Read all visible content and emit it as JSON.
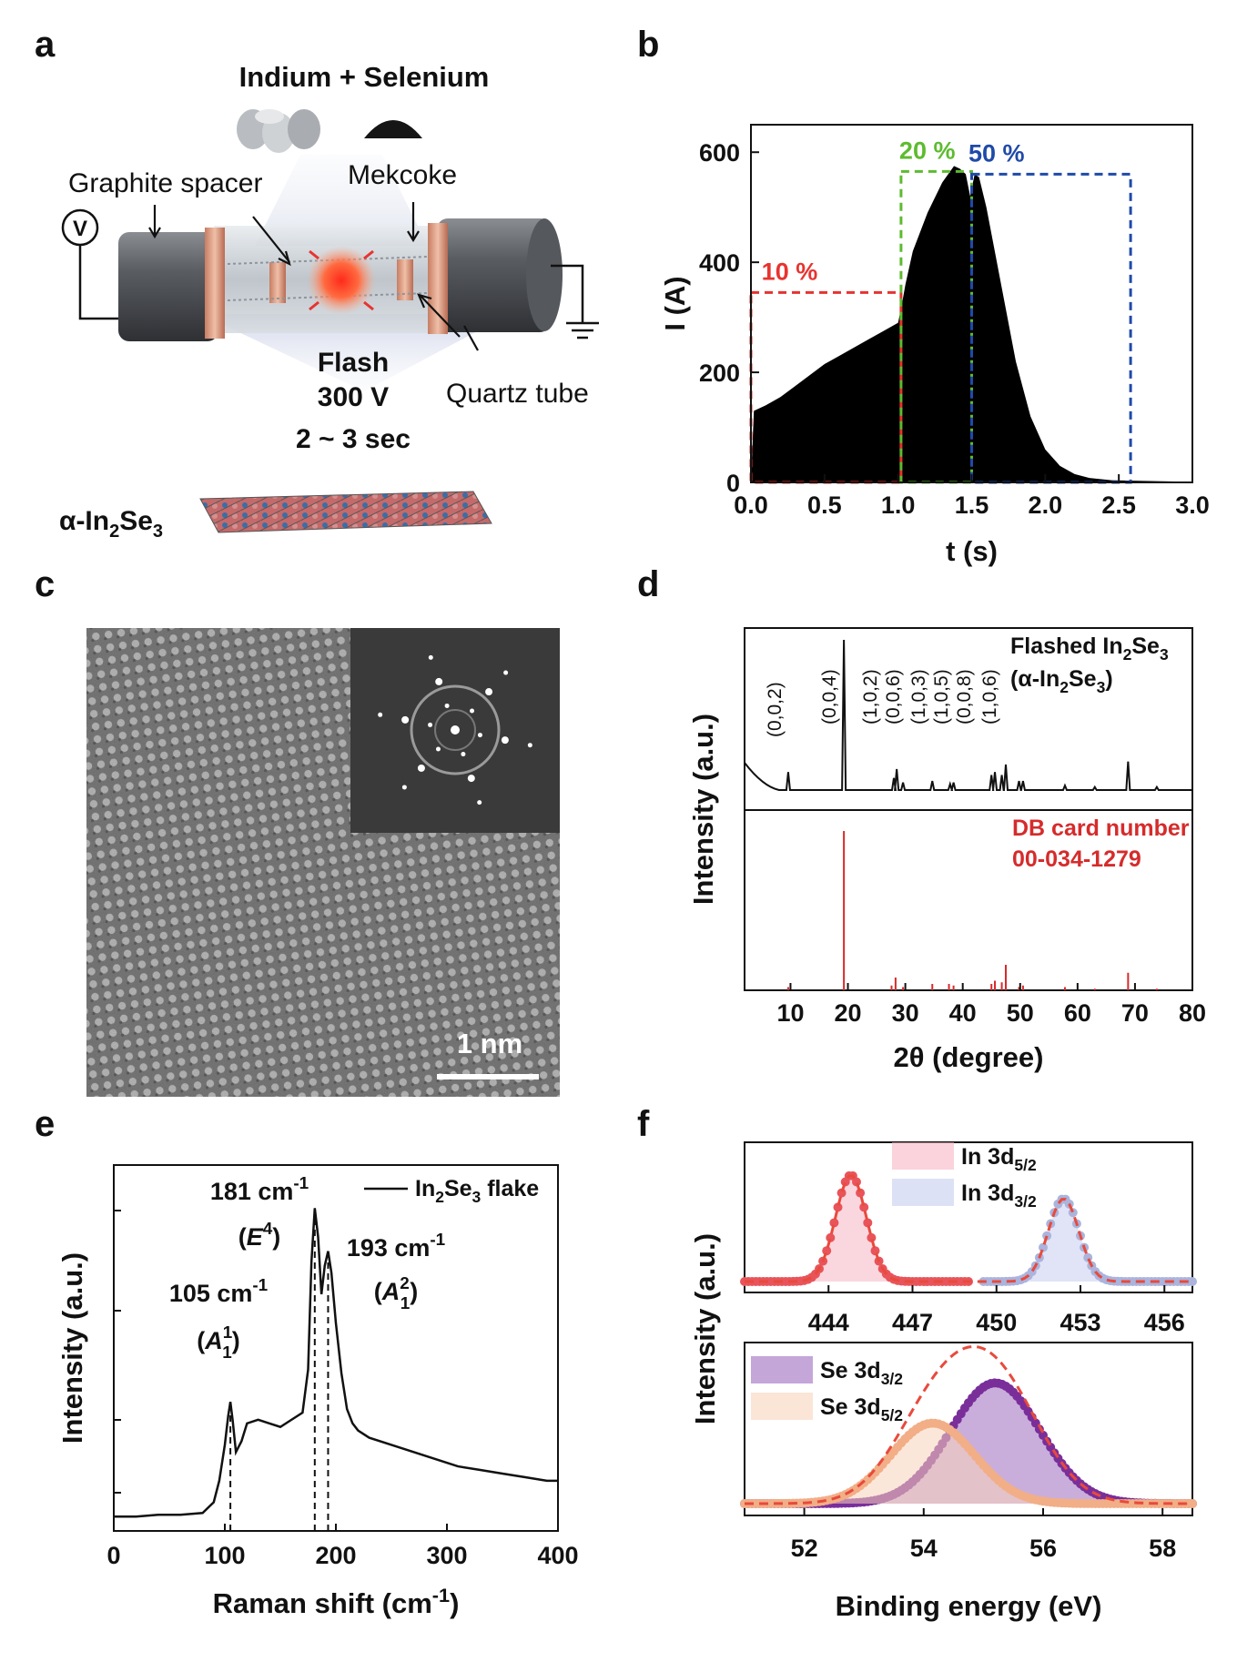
{
  "panels": {
    "a": {
      "label": "a",
      "title": "Indium + Selenium",
      "graphite_spacer": "Graphite spacer",
      "mekcoke": "Mekcoke",
      "quartz_tube": "Quartz tube",
      "voltmeter": "V",
      "flash": "Flash",
      "voltage": "300 V",
      "duration": "2 ~ 3 sec",
      "product_prefix": "α-In",
      "product_sub1": "2",
      "product_mid": "Se",
      "product_sub2": "3"
    },
    "b": {
      "label": "b"
    },
    "c": {
      "label": "c",
      "scale_bar": "1 nm"
    },
    "d": {
      "label": "d"
    },
    "e": {
      "label": "e"
    },
    "f": {
      "label": "f"
    }
  },
  "chart_data": [
    {
      "id": "b",
      "type": "area",
      "xlabel": "t (s)",
      "ylabel": "I (A)",
      "xlim": [
        0,
        3.0
      ],
      "ylim": [
        0,
        650
      ],
      "xticks": [
        "0.0",
        "0.5",
        "1.0",
        "1.5",
        "2.0",
        "2.5",
        "3.0"
      ],
      "yticks": [
        "0",
        "200",
        "400",
        "600"
      ],
      "x": [
        0.0,
        0.02,
        0.1,
        0.2,
        0.3,
        0.4,
        0.5,
        0.6,
        0.7,
        0.8,
        0.9,
        1.0,
        1.03,
        1.05,
        1.1,
        1.2,
        1.3,
        1.38,
        1.42,
        1.46,
        1.49,
        1.52,
        1.55,
        1.6,
        1.7,
        1.8,
        1.9,
        2.0,
        2.1,
        2.2,
        2.3,
        2.45,
        2.6,
        2.8,
        3.0
      ],
      "y": [
        0,
        130,
        140,
        155,
        175,
        195,
        215,
        230,
        245,
        260,
        275,
        290,
        330,
        360,
        420,
        490,
        545,
        575,
        570,
        560,
        520,
        560,
        555,
        500,
        360,
        220,
        120,
        60,
        30,
        15,
        8,
        4,
        3,
        2,
        1
      ],
      "annotations": [
        {
          "text": "10 %",
          "x0": 0.0,
          "x1": 1.02,
          "y1": 345,
          "color": "#e8332f"
        },
        {
          "text": "20 %",
          "x0": 1.02,
          "x1": 1.5,
          "y1": 565,
          "color": "#5dbb2f"
        },
        {
          "text": "50 %",
          "x0": 1.5,
          "x1": 2.58,
          "y1": 560,
          "color": "#1f4aa8"
        }
      ],
      "grid": false
    },
    {
      "id": "d",
      "type": "line",
      "xlabel": "2θ (degree)",
      "ylabel": "Intensity (a.u.)",
      "xlim": [
        2,
        80
      ],
      "xticks": [
        "10",
        "20",
        "30",
        "40",
        "50",
        "60",
        "70",
        "80"
      ],
      "series": [
        {
          "name": "Flashed In2Se3 (α-In2Se3)",
          "legend_main": "Flashed In",
          "legend_sub1": "2",
          "legend_mid": "Se",
          "legend_sub2": "3",
          "legend_line2_pre": "(α-In",
          "legend_line2_sub1": "2",
          "legend_line2_mid": "Se",
          "legend_line2_sub2": "3",
          "legend_line2_post": ")",
          "peaks_x": [
            9.6,
            19.3,
            28.0,
            28.5,
            29.6,
            34.7,
            37.8,
            38.4,
            45.0,
            45.6,
            46.8,
            47.5,
            49.8,
            50.5,
            57.8,
            63.0,
            68.8,
            73.8
          ],
          "peaks_y": [
            0.12,
            1.0,
            0.08,
            0.14,
            0.05,
            0.06,
            0.04,
            0.05,
            0.1,
            0.12,
            0.1,
            0.17,
            0.06,
            0.06,
            0.03,
            0.02,
            0.19,
            0.02
          ],
          "color": "#111111"
        },
        {
          "name": "DB card number 00-034-1279",
          "legend_line1": "DB card number",
          "legend_line2": "00-034-1279",
          "peaks_x": [
            9.6,
            19.3,
            27.6,
            28.3,
            29.6,
            34.7,
            37.6,
            38.4,
            45.0,
            45.6,
            46.8,
            47.5,
            49.8,
            50.5,
            57.8,
            63.0,
            68.8,
            73.8
          ],
          "peaks_y": [
            0.02,
            1.0,
            0.03,
            0.08,
            0.02,
            0.04,
            0.04,
            0.03,
            0.04,
            0.06,
            0.05,
            0.16,
            0.02,
            0.03,
            0.02,
            0.01,
            0.11,
            0.01
          ],
          "color": "#d62b2b"
        }
      ],
      "miller_labels": [
        {
          "x": 9.6,
          "text": "(0,0,2)"
        },
        {
          "x": 19.3,
          "text": "(0,0,4)"
        },
        {
          "x": 28.0,
          "text": "(1,0,2)"
        },
        {
          "x": 28.5,
          "text": "(0,0,6)"
        },
        {
          "x": 34.7,
          "text": "(1,0,3)"
        },
        {
          "x": 37.8,
          "text": "(1,0,5)"
        },
        {
          "x": 38.4,
          "text": "(0,0,8)"
        },
        {
          "x": 38.9,
          "text": "(1,0,6)"
        }
      ]
    },
    {
      "id": "e",
      "type": "line",
      "xlabel": "Raman shift (cm",
      "xlabel_sup": "-1",
      "xlabel_end": ")",
      "ylabel": "Intensity (a.u.)",
      "xlim": [
        0,
        400
      ],
      "xticks": [
        "0",
        "100",
        "200",
        "300",
        "400"
      ],
      "series": [
        {
          "name": "In2Se3 flake",
          "legend_pre": "In",
          "legend_sub1": "2",
          "legend_mid": "Se",
          "legend_sub2": "3",
          "legend_post": " flake",
          "x": [
            0,
            20,
            40,
            60,
            80,
            90,
            95,
            100,
            103,
            105,
            107,
            110,
            115,
            120,
            130,
            140,
            150,
            160,
            170,
            175,
            178,
            181,
            184,
            187,
            190,
            193,
            196,
            200,
            205,
            210,
            215,
            220,
            230,
            250,
            270,
            290,
            310,
            330,
            350,
            370,
            390,
            400
          ],
          "y": [
            0.04,
            0.04,
            0.045,
            0.045,
            0.05,
            0.08,
            0.14,
            0.24,
            0.32,
            0.36,
            0.31,
            0.22,
            0.25,
            0.3,
            0.31,
            0.3,
            0.29,
            0.31,
            0.33,
            0.45,
            0.75,
            0.9,
            0.82,
            0.66,
            0.74,
            0.78,
            0.72,
            0.58,
            0.44,
            0.34,
            0.3,
            0.28,
            0.26,
            0.24,
            0.22,
            0.2,
            0.18,
            0.17,
            0.16,
            0.15,
            0.14,
            0.14
          ],
          "color": "#111111"
        }
      ],
      "peaks": [
        {
          "x": 105,
          "label": "105 cm",
          "sup": "-1",
          "mode_letter": "A",
          "mode_sup": "1",
          "mode_sub": "1"
        },
        {
          "x": 181,
          "label": "181 cm",
          "sup": "-1",
          "mode_letter": "E",
          "mode_sup": "4",
          "mode_sub": ""
        },
        {
          "x": 193,
          "label": "193 cm",
          "sup": "-1",
          "mode_letter": "A",
          "mode_sup": "2",
          "mode_sub": "1"
        }
      ]
    },
    {
      "id": "f_top",
      "type": "line",
      "xlim": [
        441,
        457
      ],
      "xticks": [
        "444",
        "447",
        "450",
        "453",
        "456"
      ],
      "series": [
        {
          "name": "In 3d5/2",
          "legend_pre": "In 3d",
          "legend_sub": "5/2",
          "center": 444.8,
          "height": 0.9,
          "sigma": 0.55,
          "color": "#e8545a",
          "fill": "#f6b6c4"
        },
        {
          "name": "In 3d3/2",
          "legend_pre": "In 3d",
          "legend_sub": "3/2",
          "center": 452.4,
          "height": 0.7,
          "sigma": 0.55,
          "color": "#aab4dd",
          "fill": "#c6cdee"
        }
      ]
    },
    {
      "id": "f_bottom",
      "type": "line",
      "xlabel": "Binding energy (eV)",
      "ylabel": "Intensity (a.u.)",
      "xlim": [
        51,
        58.5
      ],
      "xticks": [
        "52",
        "54",
        "56",
        "58"
      ],
      "series": [
        {
          "name": "Se 3d3/2",
          "legend_pre": "Se 3d",
          "legend_sub": "3/2",
          "center": 55.2,
          "height": 0.78,
          "sigma": 0.75,
          "color": "#7a2e9a",
          "fill": "#9d6bc0"
        },
        {
          "name": "Se 3d5/2",
          "legend_pre": "Se 3d",
          "legend_sub": "5/2",
          "center": 54.15,
          "height": 0.52,
          "sigma": 0.7,
          "color": "#f2ae86",
          "fill": "#f8d4bc"
        }
      ]
    }
  ]
}
